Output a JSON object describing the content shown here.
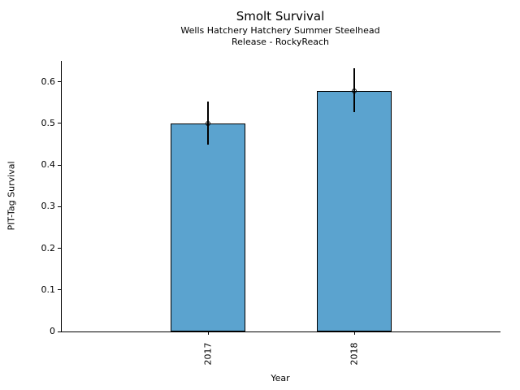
{
  "chart_data": {
    "type": "bar",
    "title": "Smolt Survival",
    "subtitle": [
      "Wells Hatchery Hatchery Summer Steelhead",
      "Release - RockyReach"
    ],
    "categories": [
      "2017",
      "2018"
    ],
    "values": [
      0.5,
      0.578
    ],
    "error_low": [
      0.449,
      0.527
    ],
    "error_high": [
      0.552,
      0.632
    ],
    "xlabel": "Year",
    "ylabel": "PIT-Tag Survival",
    "ylim": [
      0,
      0.65
    ],
    "yticks": [
      0,
      0.1,
      0.2,
      0.3,
      0.4,
      0.5,
      0.6
    ],
    "ytick_labels": [
      "0",
      "0.1",
      "0.2",
      "0.3",
      "0.4",
      "0.5",
      "0.6"
    ],
    "grid": false,
    "legend": "none",
    "bar_color": "#5BA3CF",
    "bar_edge_color": "#000000",
    "bar_width_frac": 0.17,
    "x_tick_rotation": 90
  }
}
